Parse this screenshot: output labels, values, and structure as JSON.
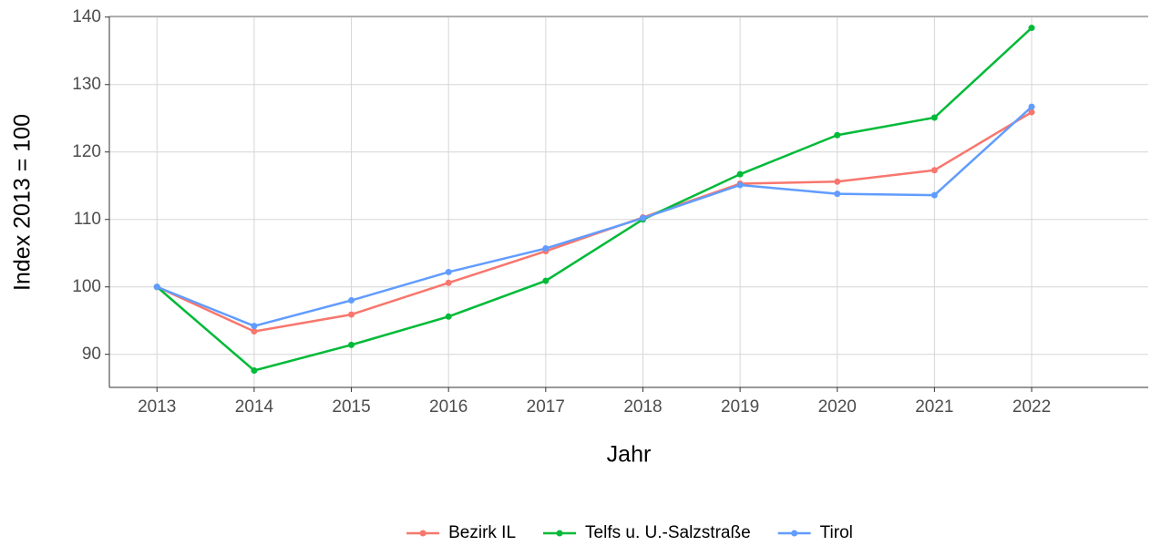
{
  "chart_data": {
    "type": "line",
    "x_label": "Jahr",
    "y_label": "Index  2013  = 100",
    "x": [
      2013,
      2014,
      2015,
      2016,
      2017,
      2018,
      2019,
      2020,
      2021,
      2022
    ],
    "series": [
      {
        "name": "Bezirk IL",
        "color": "#F8766D",
        "values": [
          100,
          93.4,
          95.9,
          100.6,
          105.3,
          110.3,
          115.3,
          115.6,
          117.3,
          125.9
        ]
      },
      {
        "name": "Telfs u. U.-Salzstraße",
        "color": "#00BA38",
        "values": [
          100,
          87.6,
          91.4,
          95.6,
          100.9,
          110.0,
          116.7,
          122.5,
          125.1,
          138.4
        ]
      },
      {
        "name": "Tirol",
        "color": "#619CFF",
        "values": [
          100,
          94.2,
          98.0,
          102.2,
          105.7,
          110.2,
          115.1,
          113.8,
          113.6,
          126.7
        ]
      }
    ],
    "xlim": [
      2012.51,
      2023.2
    ],
    "xticks": [
      2013,
      2014,
      2015,
      2016,
      2017,
      2018,
      2019,
      2020,
      2021,
      2022
    ],
    "ylim": [
      85.1,
      140.1
    ],
    "yticks": [
      90,
      100,
      110,
      120,
      130,
      140
    ],
    "grid": true,
    "legend": "bottom"
  }
}
